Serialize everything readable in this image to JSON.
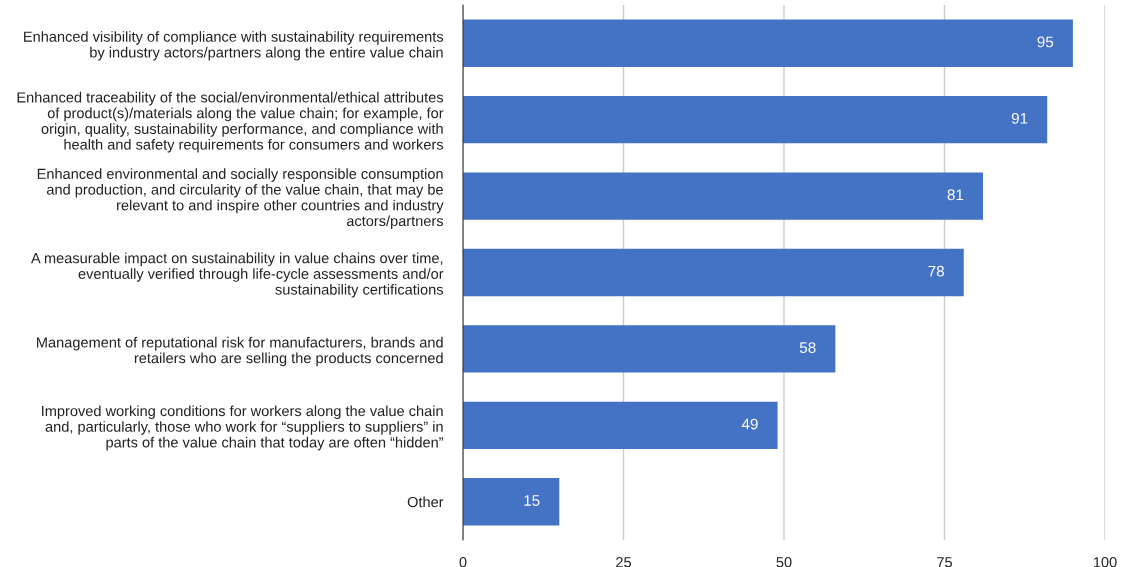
{
  "chart_data": {
    "type": "bar",
    "orientation": "horizontal",
    "categories": [
      "Enhanced visibility of compliance with sustainability requirements\nby industry actors/partners along the entire value chain",
      "Enhanced traceability of the social/environmental/ethical attributes\nof product(s)/materials along the value chain; for example, for\norigin, quality, sustainability performance, and compliance with\nhealth and safety requirements for consumers and workers",
      "Enhanced environmental and socially responsible consumption\nand production, and circularity of the value chain, that may be\nrelevant to and inspire other countries and industry\nactors/partners",
      "A measurable impact on sustainability in value chains over time,\neventually verified through life-cycle assessments and/or\nsustainability certifications",
      "Management of reputational risk for manufacturers, brands and\nretailers who are selling the products concerned",
      "Improved working conditions for workers along the value chain\nand, particularly, those who work for “suppliers to suppliers” in\nparts of the value chain that today are often “hidden”",
      "Other"
    ],
    "values": [
      95,
      91,
      81,
      78,
      58,
      49,
      15
    ],
    "color": "#4472c4",
    "xlim": [
      0,
      100
    ],
    "xticks": [
      0,
      25,
      50,
      75,
      100
    ],
    "grid": "x",
    "data_labels": true,
    "legend": false
  }
}
